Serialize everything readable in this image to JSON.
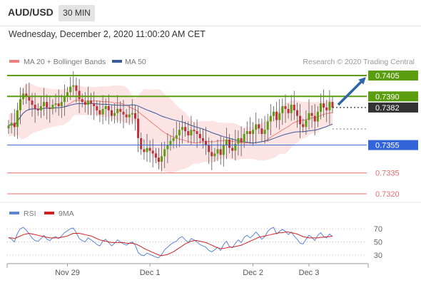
{
  "header": {
    "symbol": "AUD/USD",
    "timeframe": "30 MIN"
  },
  "datetime": "Wednesday, December 2, 2020 11:00:20 AM CET",
  "legend": {
    "ma20_bb": "MA 20 + Bollinger Bands",
    "ma50": "MA 50",
    "credit": "Research © 2020 Trading Central",
    "rsi": "RSI",
    "rsi_ma": "9MA"
  },
  "colors": {
    "resistance": "#5a9e0f",
    "support": "#3465d8",
    "weak_level": "#e07070",
    "current": "#333333",
    "arrow": "#2e64a8",
    "ma20": "#f08080",
    "ma50": "#3a5a9a",
    "band_fill": "#fde4e4",
    "candle_up": "#5a9e0f",
    "candle_down": "#c0303c",
    "rsi_line": "#5b86d6",
    "rsi_ma_line": "#cc2222"
  },
  "chart_data": [
    {
      "type": "candlestick",
      "title": "AUD/USD 30 MIN",
      "ylim": [
        0.731,
        0.7415
      ],
      "x_ticks": [
        "Nov 29",
        "Dec 1",
        "Dec 2",
        "Dec 3"
      ],
      "series_legend": [
        "MA 20 + Bollinger Bands",
        "MA 50"
      ],
      "levels": [
        {
          "label": "0.7405",
          "value": 0.7405,
          "kind": "resistance"
        },
        {
          "label": "0.7390",
          "value": 0.739,
          "kind": "resistance"
        },
        {
          "label": "0.7382",
          "value": 0.7382,
          "kind": "current"
        },
        {
          "label": "0.7355",
          "value": 0.7355,
          "kind": "support"
        },
        {
          "label": "0.7335",
          "value": 0.7335,
          "kind": "weak"
        },
        {
          "label": "0.7320",
          "value": 0.732,
          "kind": "weak"
        }
      ],
      "closes": [
        0.7369,
        0.7371,
        0.7368,
        0.738,
        0.7388,
        0.7392,
        0.739,
        0.7387,
        0.7384,
        0.7381,
        0.738,
        0.7383,
        0.7386,
        0.7382,
        0.7381,
        0.7384,
        0.7385,
        0.7383,
        0.7386,
        0.739,
        0.7393,
        0.7397,
        0.7398,
        0.7394,
        0.7388,
        0.7386,
        0.7384,
        0.7387,
        0.7385,
        0.7383,
        0.738,
        0.7377,
        0.7381,
        0.7383,
        0.738,
        0.7376,
        0.7378,
        0.7381,
        0.7379,
        0.7377,
        0.7375,
        0.7377,
        0.7378,
        0.7374,
        0.736,
        0.7352,
        0.735,
        0.7353,
        0.7351,
        0.7349,
        0.7346,
        0.7343,
        0.7347,
        0.7352,
        0.7355,
        0.7358,
        0.736,
        0.7362,
        0.7366,
        0.7368,
        0.7365,
        0.7362,
        0.7366,
        0.7365,
        0.7363,
        0.736,
        0.7358,
        0.7355,
        0.735,
        0.7347,
        0.7349,
        0.7352,
        0.7348,
        0.7355,
        0.7359,
        0.7353,
        0.7351,
        0.7356,
        0.736,
        0.7357,
        0.7363,
        0.7365,
        0.7363,
        0.7366,
        0.737,
        0.7367,
        0.7363,
        0.7366,
        0.7372,
        0.7376,
        0.7379,
        0.7373,
        0.7378,
        0.7383,
        0.7381,
        0.7378,
        0.7384,
        0.738,
        0.7376,
        0.737,
        0.7368,
        0.7373,
        0.7378,
        0.7376,
        0.7372,
        0.7379,
        0.7385,
        0.7382,
        0.738,
        0.7386,
        0.7382
      ]
    },
    {
      "type": "line",
      "title": "RSI",
      "ylim": [
        20,
        80
      ],
      "y_ticks": [
        70,
        50,
        30
      ],
      "series": [
        {
          "name": "RSI",
          "values": [
            57,
            54,
            50,
            63,
            70,
            72,
            68,
            62,
            56,
            52,
            51,
            55,
            60,
            54,
            52,
            56,
            58,
            55,
            59,
            64,
            67,
            70,
            71,
            64,
            55,
            52,
            50,
            56,
            53,
            50,
            46,
            44,
            51,
            54,
            49,
            44,
            48,
            53,
            50,
            47,
            45,
            48,
            50,
            45,
            34,
            30,
            29,
            33,
            31,
            29,
            27,
            26,
            31,
            38,
            42,
            46,
            49,
            51,
            56,
            58,
            53,
            49,
            55,
            53,
            50,
            46,
            44,
            42,
            37,
            35,
            38,
            42,
            37,
            46,
            51,
            43,
            41,
            48,
            53,
            49,
            57,
            60,
            56,
            60,
            65,
            60,
            54,
            58,
            66,
            70,
            72,
            62,
            66,
            69,
            66,
            61,
            65,
            59,
            54,
            48,
            47,
            54,
            60,
            57,
            52,
            60,
            64,
            58,
            56,
            62,
            58
          ]
        },
        {
          "name": "9MA",
          "values": [
            56,
            56,
            55,
            57,
            59,
            61,
            62,
            63,
            62,
            61,
            60,
            59,
            58,
            57,
            56,
            56,
            56,
            56,
            57,
            58,
            59,
            61,
            63,
            63,
            63,
            62,
            61,
            60,
            59,
            57,
            55,
            53,
            52,
            51,
            50,
            49,
            49,
            49,
            49,
            49,
            48,
            48,
            48,
            47,
            45,
            43,
            40,
            38,
            36,
            34,
            32,
            30,
            29,
            30,
            31,
            33,
            35,
            38,
            41,
            44,
            47,
            49,
            51,
            52,
            52,
            51,
            50,
            49,
            47,
            45,
            43,
            41,
            40,
            40,
            41,
            42,
            42,
            43,
            44,
            45,
            47,
            49,
            51,
            53,
            55,
            57,
            58,
            59,
            60,
            61,
            62,
            63,
            64,
            64,
            65,
            65,
            64,
            63,
            62,
            60,
            58,
            57,
            56,
            56,
            56,
            56,
            57,
            57,
            58,
            58,
            59
          ]
        }
      ]
    }
  ]
}
